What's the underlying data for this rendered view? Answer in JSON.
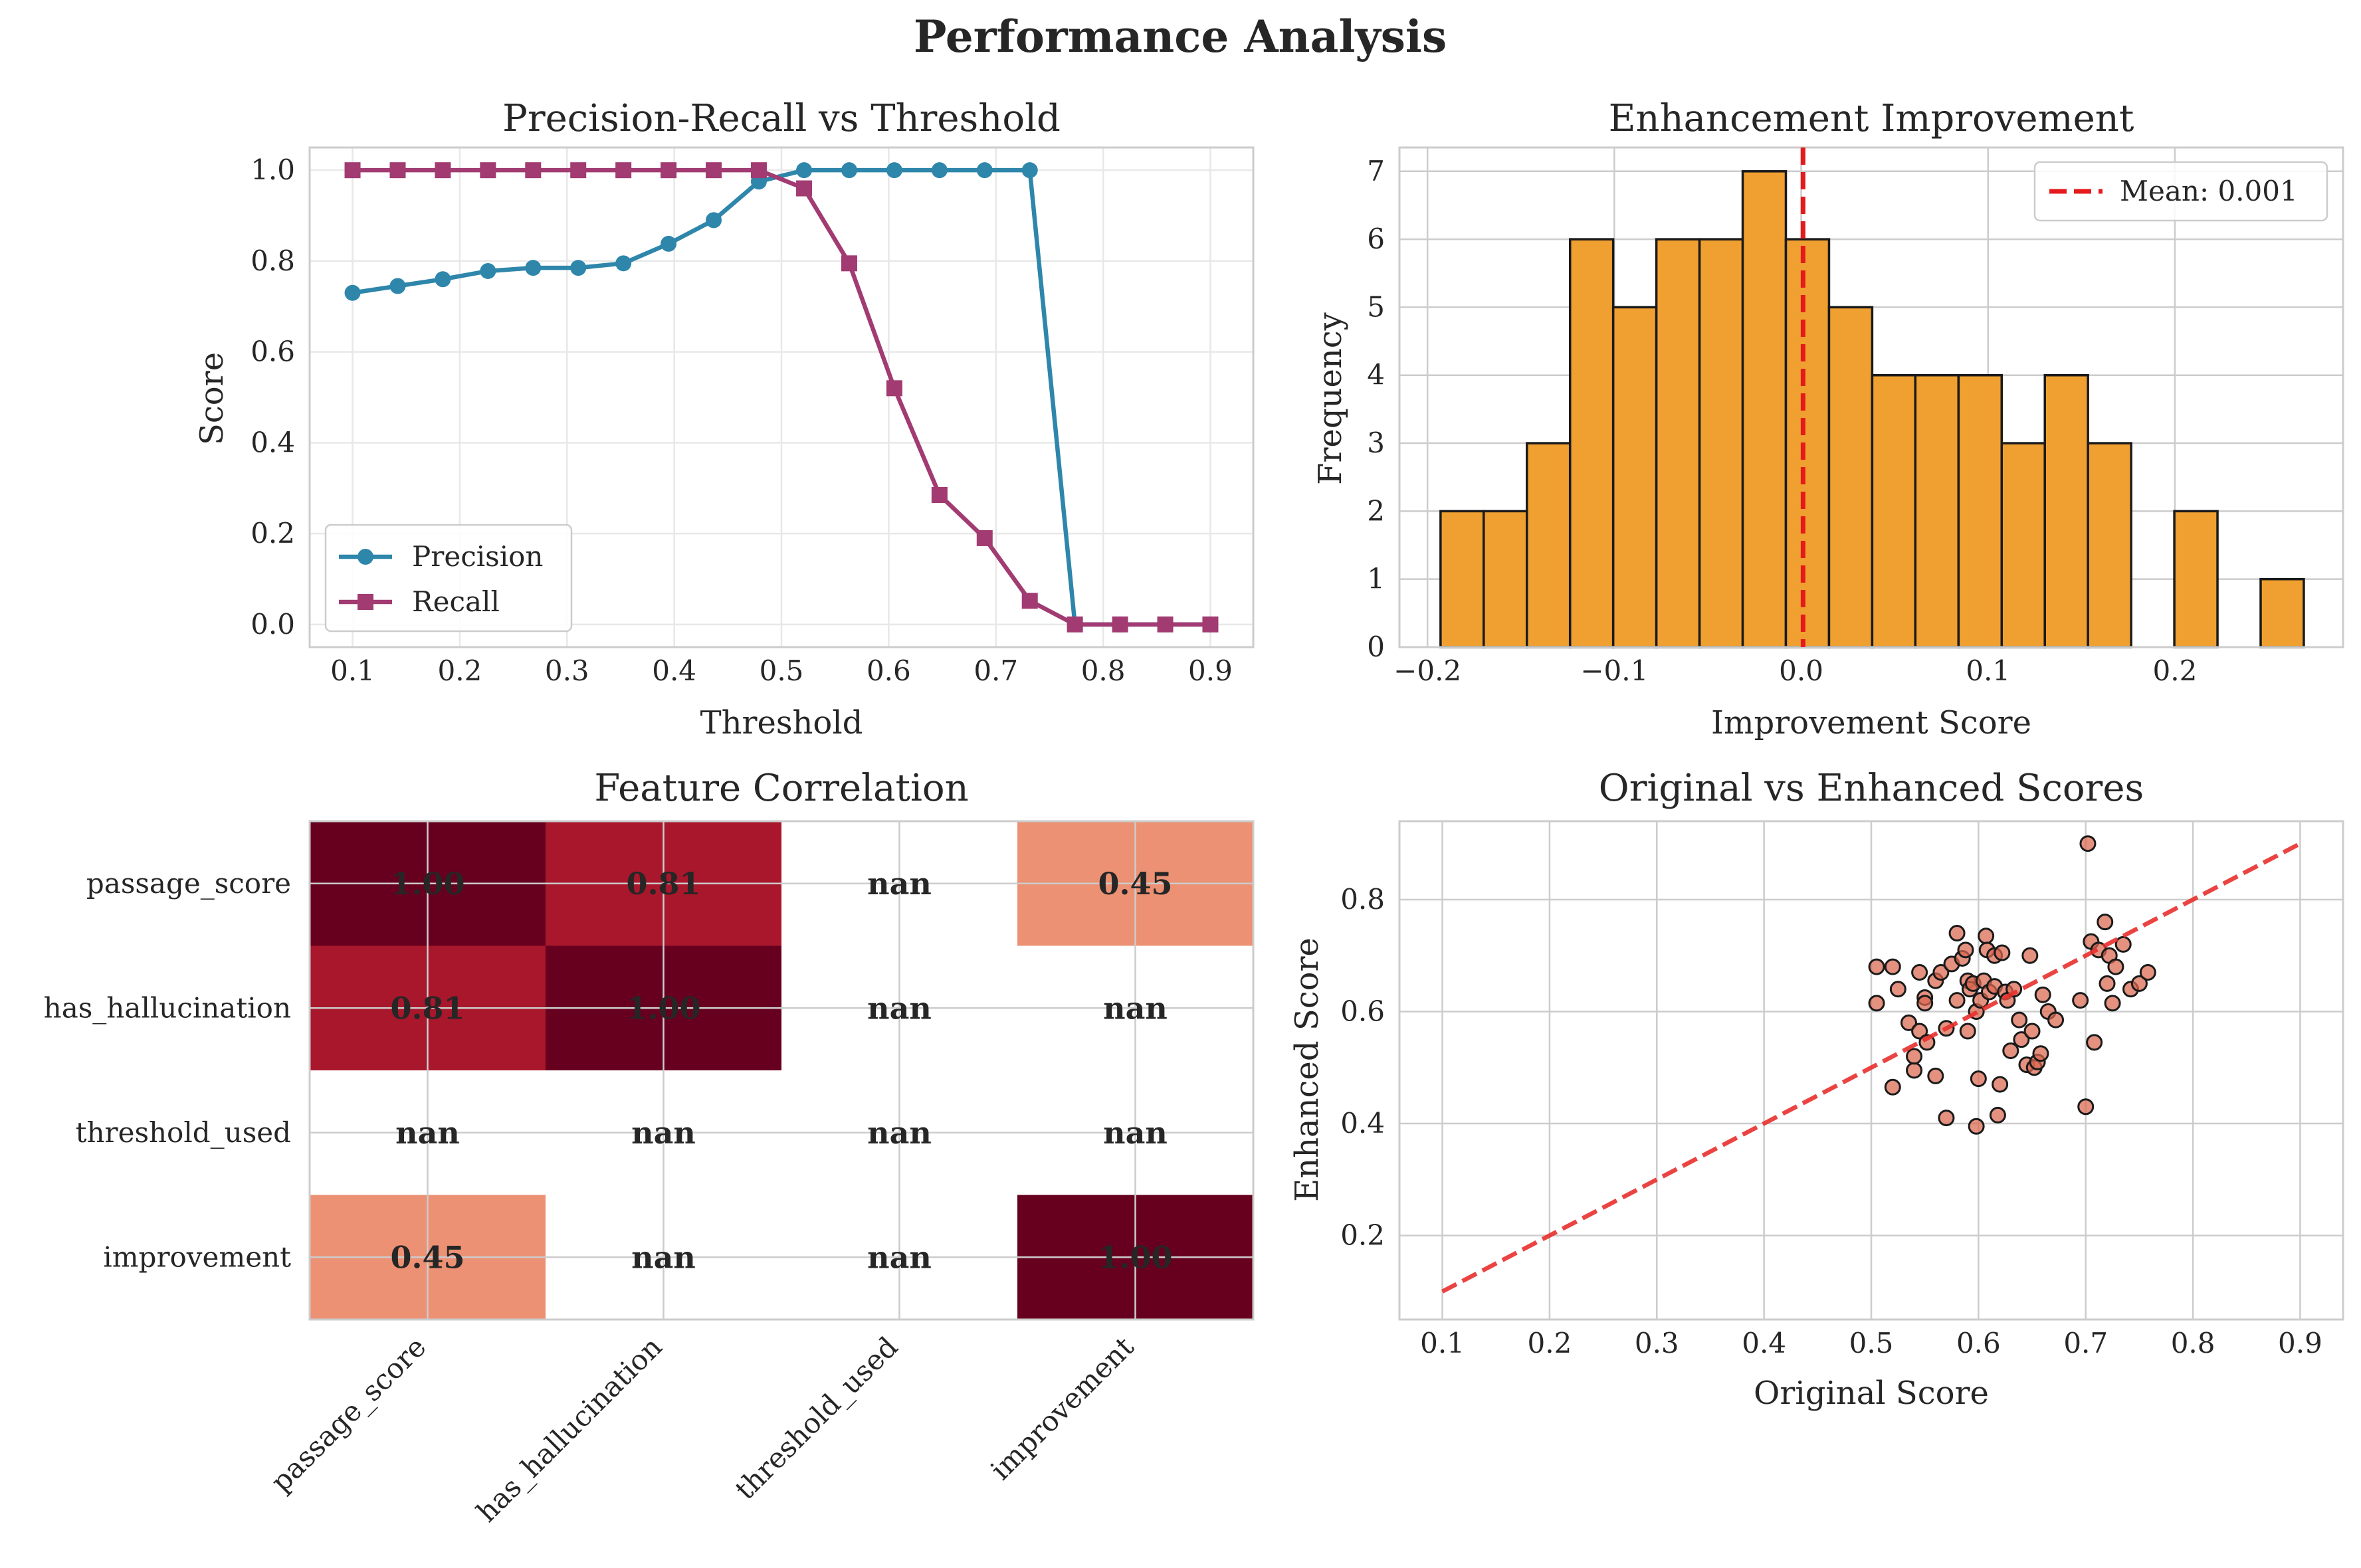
{
  "figure_title": "Performance Analysis",
  "colors": {
    "precision": "#2e86ab",
    "recall": "#a23b72",
    "histogram": "#f0a030",
    "mean_line": "#e41a1c",
    "scatter": "#d9664f",
    "diagonal": "#e8302e"
  },
  "chart_data": [
    {
      "id": "pr",
      "type": "line",
      "title": "Precision-Recall vs Threshold",
      "xlabel": "Threshold",
      "ylabel": "Score",
      "xlim": [
        0.06,
        0.94
      ],
      "ylim": [
        -0.05,
        1.05
      ],
      "xticks": [
        "0.1",
        "0.2",
        "0.3",
        "0.4",
        "0.5",
        "0.6",
        "0.7",
        "0.8",
        "0.9"
      ],
      "yticks": [
        "0.0",
        "0.2",
        "0.4",
        "0.6",
        "0.8",
        "1.0"
      ],
      "legend_position": "lower-left",
      "x": [
        0.1,
        0.1421,
        0.1842,
        0.2263,
        0.2684,
        0.3105,
        0.3526,
        0.3947,
        0.4368,
        0.4789,
        0.5211,
        0.5632,
        0.6053,
        0.6474,
        0.6895,
        0.7316,
        0.7737,
        0.8158,
        0.8579,
        0.9
      ],
      "series": [
        {
          "name": "Precision",
          "marker": "circle",
          "values": [
            0.73,
            0.745,
            0.76,
            0.778,
            0.785,
            0.785,
            0.795,
            0.838,
            0.89,
            0.975,
            1.0,
            1.0,
            1.0,
            1.0,
            1.0,
            1.0,
            0.0,
            0.0,
            0.0,
            0.0
          ]
        },
        {
          "name": "Recall",
          "marker": "square",
          "values": [
            1.0,
            1.0,
            1.0,
            1.0,
            1.0,
            1.0,
            1.0,
            1.0,
            1.0,
            1.0,
            0.96,
            0.795,
            0.52,
            0.285,
            0.19,
            0.052,
            0.0,
            0.0,
            0.0,
            0.0
          ]
        }
      ],
      "grid": true
    },
    {
      "id": "hist",
      "type": "bar",
      "title": "Enhancement Improvement",
      "xlabel": "Improvement Score",
      "ylabel": "Frequency",
      "xlim": [
        -0.215,
        0.29
      ],
      "ylim": [
        0,
        7.35
      ],
      "xticks": [
        "−0.2",
        "−0.1",
        "0.0",
        "0.1",
        "0.2"
      ],
      "xtick_values": [
        -0.2,
        -0.1,
        0.0,
        0.1,
        0.2
      ],
      "yticks": [
        "0",
        "1",
        "2",
        "3",
        "4",
        "5",
        "6",
        "7"
      ],
      "bin_start": -0.193,
      "bin_width": 0.0231,
      "values": [
        2,
        2,
        3,
        6,
        5,
        6,
        6,
        7,
        6,
        5,
        4,
        4,
        4,
        3,
        4,
        3,
        0,
        2,
        0,
        1
      ],
      "mean_line": {
        "label": "Mean: 0.001",
        "value": 0.001
      },
      "legend_position": "upper-right",
      "grid": true
    },
    {
      "id": "heat",
      "type": "heatmap",
      "title": "Feature Correlation",
      "rows": [
        "passage_score",
        "has_hallucination",
        "threshold_used",
        "improvement"
      ],
      "cols": [
        "passage_score",
        "has_hallucination",
        "threshold_used",
        "improvement"
      ],
      "cells": [
        [
          "1.00",
          "0.81",
          "nan",
          "0.45"
        ],
        [
          "0.81",
          "1.00",
          "nan",
          "nan"
        ],
        [
          "nan",
          "nan",
          "nan",
          "nan"
        ],
        [
          "0.45",
          "nan",
          "nan",
          "1.00"
        ]
      ],
      "cell_colors": [
        [
          "#67001f",
          "#a8172b",
          "#ffffff",
          "#ec9173"
        ],
        [
          "#a8172b",
          "#67001f",
          "#ffffff",
          "#ffffff"
        ],
        [
          "#ffffff",
          "#ffffff",
          "#ffffff",
          "#ffffff"
        ],
        [
          "#ec9173",
          "#ffffff",
          "#ffffff",
          "#67001f"
        ]
      ]
    },
    {
      "id": "scatter",
      "type": "scatter",
      "title": "Original vs Enhanced Scores",
      "xlabel": "Original Score",
      "ylabel": "Enhanced Score",
      "xlim": [
        0.06,
        0.94
      ],
      "ylim": [
        0.05,
        0.94
      ],
      "xticks": [
        "0.1",
        "0.2",
        "0.3",
        "0.4",
        "0.5",
        "0.6",
        "0.7",
        "0.8",
        "0.9"
      ],
      "yticks": [
        "0.2",
        "0.4",
        "0.6",
        "0.8"
      ],
      "diagonal": [
        [
          0.1,
          0.1
        ],
        [
          0.9,
          0.9
        ]
      ],
      "points": [
        [
          0.505,
          0.68
        ],
        [
          0.505,
          0.615
        ],
        [
          0.52,
          0.68
        ],
        [
          0.52,
          0.465
        ],
        [
          0.525,
          0.64
        ],
        [
          0.535,
          0.58
        ],
        [
          0.54,
          0.495
        ],
        [
          0.54,
          0.52
        ],
        [
          0.545,
          0.565
        ],
        [
          0.545,
          0.67
        ],
        [
          0.55,
          0.625
        ],
        [
          0.55,
          0.615
        ],
        [
          0.552,
          0.545
        ],
        [
          0.56,
          0.655
        ],
        [
          0.56,
          0.485
        ],
        [
          0.565,
          0.67
        ],
        [
          0.57,
          0.41
        ],
        [
          0.57,
          0.57
        ],
        [
          0.575,
          0.685
        ],
        [
          0.58,
          0.74
        ],
        [
          0.58,
          0.62
        ],
        [
          0.585,
          0.695
        ],
        [
          0.588,
          0.71
        ],
        [
          0.59,
          0.655
        ],
        [
          0.59,
          0.565
        ],
        [
          0.592,
          0.64
        ],
        [
          0.595,
          0.65
        ],
        [
          0.598,
          0.6
        ],
        [
          0.598,
          0.395
        ],
        [
          0.6,
          0.48
        ],
        [
          0.602,
          0.62
        ],
        [
          0.605,
          0.655
        ],
        [
          0.607,
          0.735
        ],
        [
          0.608,
          0.71
        ],
        [
          0.61,
          0.635
        ],
        [
          0.615,
          0.645
        ],
        [
          0.615,
          0.7
        ],
        [
          0.618,
          0.415
        ],
        [
          0.62,
          0.47
        ],
        [
          0.622,
          0.705
        ],
        [
          0.625,
          0.635
        ],
        [
          0.627,
          0.62
        ],
        [
          0.63,
          0.53
        ],
        [
          0.633,
          0.64
        ],
        [
          0.638,
          0.585
        ],
        [
          0.64,
          0.55
        ],
        [
          0.645,
          0.505
        ],
        [
          0.648,
          0.7
        ],
        [
          0.65,
          0.565
        ],
        [
          0.652,
          0.5
        ],
        [
          0.655,
          0.51
        ],
        [
          0.658,
          0.525
        ],
        [
          0.66,
          0.63
        ],
        [
          0.665,
          0.6
        ],
        [
          0.672,
          0.585
        ],
        [
          0.695,
          0.62
        ],
        [
          0.7,
          0.43
        ],
        [
          0.702,
          0.9
        ],
        [
          0.705,
          0.725
        ],
        [
          0.708,
          0.545
        ],
        [
          0.712,
          0.71
        ],
        [
          0.718,
          0.76
        ],
        [
          0.72,
          0.65
        ],
        [
          0.722,
          0.7
        ],
        [
          0.725,
          0.615
        ],
        [
          0.728,
          0.68
        ],
        [
          0.735,
          0.72
        ],
        [
          0.742,
          0.64
        ],
        [
          0.75,
          0.65
        ],
        [
          0.758,
          0.67
        ]
      ],
      "grid": true
    }
  ]
}
